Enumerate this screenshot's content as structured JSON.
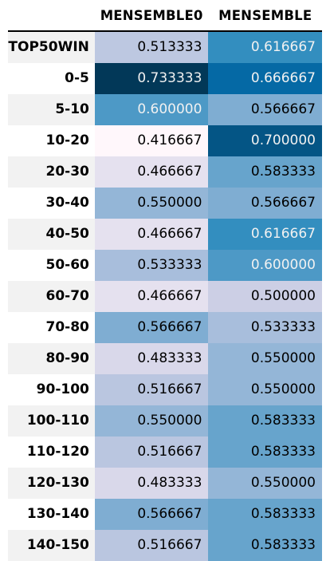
{
  "chart_data": {
    "type": "heatmap",
    "columns": [
      "MENSEMBLE0",
      "MENSEMBLE"
    ],
    "rows": [
      {
        "label": "TOP50WIN",
        "values": [
          "0.513333",
          "0.616667"
        ]
      },
      {
        "label": "0-5",
        "values": [
          "0.733333",
          "0.666667"
        ]
      },
      {
        "label": "5-10",
        "values": [
          "0.600000",
          "0.566667"
        ]
      },
      {
        "label": "10-20",
        "values": [
          "0.416667",
          "0.700000"
        ]
      },
      {
        "label": "20-30",
        "values": [
          "0.466667",
          "0.583333"
        ]
      },
      {
        "label": "30-40",
        "values": [
          "0.550000",
          "0.566667"
        ]
      },
      {
        "label": "40-50",
        "values": [
          "0.466667",
          "0.616667"
        ]
      },
      {
        "label": "50-60",
        "values": [
          "0.533333",
          "0.600000"
        ]
      },
      {
        "label": "60-70",
        "values": [
          "0.466667",
          "0.500000"
        ]
      },
      {
        "label": "70-80",
        "values": [
          "0.566667",
          "0.533333"
        ]
      },
      {
        "label": "80-90",
        "values": [
          "0.483333",
          "0.550000"
        ]
      },
      {
        "label": "90-100",
        "values": [
          "0.516667",
          "0.550000"
        ]
      },
      {
        "label": "100-110",
        "values": [
          "0.550000",
          "0.583333"
        ]
      },
      {
        "label": "110-120",
        "values": [
          "0.516667",
          "0.583333"
        ]
      },
      {
        "label": "120-130",
        "values": [
          "0.483333",
          "0.550000"
        ]
      },
      {
        "label": "130-140",
        "values": [
          "0.566667",
          "0.583333"
        ]
      },
      {
        "label": "140-150",
        "values": [
          "0.516667",
          "0.583333"
        ]
      }
    ],
    "colormap": "PuBu",
    "value_range": [
      0.416667,
      0.733333
    ],
    "colors": {
      "low": "#fff7fb",
      "high": "#023858"
    }
  }
}
